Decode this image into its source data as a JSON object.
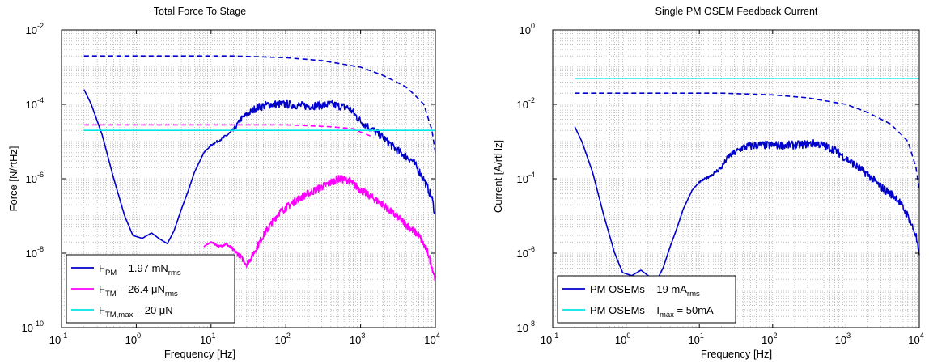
{
  "chart_data": [
    {
      "type": "line",
      "title": "Total Force To Stage",
      "xlabel": "Frequency [Hz]",
      "ylabel": "Force [N/rtHz]",
      "xscale": "log",
      "yscale": "log",
      "xlim": [
        0.1,
        10000
      ],
      "ylim": [
        1e-10,
        0.01
      ],
      "grid": true,
      "legend_position": "bottom-left",
      "x_ticks": [
        {
          "base": "10",
          "exp": "-1"
        },
        {
          "base": "10",
          "exp": "0"
        },
        {
          "base": "10",
          "exp": "1"
        },
        {
          "base": "10",
          "exp": "2"
        },
        {
          "base": "10",
          "exp": "3"
        },
        {
          "base": "10",
          "exp": "4"
        }
      ],
      "y_ticks": [
        {
          "base": "10",
          "exp": "-10"
        },
        {
          "base": "10",
          "exp": "-8"
        },
        {
          "base": "10",
          "exp": "-6"
        },
        {
          "base": "10",
          "exp": "-4"
        },
        {
          "base": "10",
          "exp": "-2"
        }
      ],
      "legend": [
        {
          "main": "F",
          "sub": "PM",
          "mid": " – 1.97 mN",
          "sub2": "rms",
          "color": "#0000cc"
        },
        {
          "main": "F",
          "sub": "TM",
          "mid": " – 26.4 μN",
          "sub2": "rms",
          "color": "#ff00ff"
        },
        {
          "main": "F",
          "sub": "TM,max",
          "mid": " – 20 μN",
          "sub2": "",
          "color": "#00e5e5"
        }
      ],
      "series": [
        {
          "color": "#0000cc",
          "dash": false,
          "noise": 0.22,
          "points": [
            [
              0.2,
              0.00025
            ],
            [
              0.25,
              0.0001
            ],
            [
              0.35,
              1.5e-05
            ],
            [
              0.5,
              1e-06
            ],
            [
              0.7,
              1e-07
            ],
            [
              0.9,
              3e-08
            ],
            [
              1.2,
              2.5e-08
            ],
            [
              1.6,
              3.5e-08
            ],
            [
              2.0,
              2.5e-08
            ],
            [
              2.6,
              1.8e-08
            ],
            [
              3.2,
              4e-08
            ],
            [
              4,
              1.5e-07
            ],
            [
              5,
              5e-07
            ],
            [
              6,
              1.5e-06
            ],
            [
              8,
              5e-06
            ],
            [
              10,
              8e-06
            ],
            [
              15,
              1.3e-05
            ],
            [
              20,
              2e-05
            ],
            [
              25,
              4e-05
            ],
            [
              40,
              8e-05
            ],
            [
              60,
              0.0001
            ],
            [
              100,
              0.0001
            ],
            [
              200,
              9e-05
            ],
            [
              400,
              0.0001
            ],
            [
              700,
              8e-05
            ],
            [
              1000,
              3.5e-05
            ],
            [
              2000,
              1.3e-05
            ],
            [
              3000,
              6e-06
            ],
            [
              5000,
              3e-06
            ],
            [
              7000,
              1e-06
            ],
            [
              9000,
              3e-07
            ],
            [
              10000,
              1e-07
            ]
          ]
        },
        {
          "color": "#0000cc",
          "dash": true,
          "noise": 0,
          "points": [
            [
              0.2,
              0.002
            ],
            [
              20,
              0.002
            ],
            [
              100,
              0.0018
            ],
            [
              300,
              0.0015
            ],
            [
              1000,
              0.001
            ],
            [
              2000,
              0.0006
            ],
            [
              4000,
              0.0003
            ],
            [
              5000,
              0.0002
            ],
            [
              7000,
              0.0001
            ],
            [
              9000,
              2e-05
            ],
            [
              10000,
              5e-06
            ]
          ]
        },
        {
          "color": "#ff00ff",
          "dash": true,
          "noise": 0,
          "points": [
            [
              0.2,
              2.8e-05
            ],
            [
              100,
              2.8e-05
            ],
            [
              400,
              2.5e-05
            ],
            [
              800,
              2.2e-05
            ],
            [
              1000,
              1.8e-05
            ],
            [
              1500,
              1.3e-05
            ]
          ]
        },
        {
          "color": "#00e5e5",
          "dash": false,
          "noise": 0,
          "points": [
            [
              0.2,
              2e-05
            ],
            [
              10000,
              2e-05
            ]
          ]
        },
        {
          "color": "#ff00ff",
          "dash": false,
          "noise": 0.2,
          "points": [
            [
              8,
              1.5e-08
            ],
            [
              10,
              2e-08
            ],
            [
              13,
              1.5e-08
            ],
            [
              16,
              1.8e-08
            ],
            [
              20,
              1.2e-08
            ],
            [
              25,
              8e-09
            ],
            [
              30,
              5e-09
            ],
            [
              35,
              8e-09
            ],
            [
              50,
              3e-08
            ],
            [
              80,
              1.2e-07
            ],
            [
              150,
              3e-07
            ],
            [
              300,
              6e-07
            ],
            [
              500,
              1e-06
            ],
            [
              700,
              9e-07
            ],
            [
              1000,
              5e-07
            ],
            [
              2000,
              2e-07
            ],
            [
              4000,
              6e-08
            ],
            [
              6000,
              3e-08
            ],
            [
              8000,
              1e-08
            ],
            [
              10000,
              2e-09
            ]
          ]
        }
      ]
    },
    {
      "type": "line",
      "title": "Single PM OSEM Feedback Current",
      "xlabel": "Frequency [Hz]",
      "ylabel": "Current [A/rtHz]",
      "xscale": "log",
      "yscale": "log",
      "xlim": [
        0.1,
        10000
      ],
      "ylim": [
        1e-08,
        1
      ],
      "grid": true,
      "legend_position": "bottom-left",
      "x_ticks": [
        {
          "base": "10",
          "exp": "-1"
        },
        {
          "base": "10",
          "exp": "0"
        },
        {
          "base": "10",
          "exp": "1"
        },
        {
          "base": "10",
          "exp": "2"
        },
        {
          "base": "10",
          "exp": "3"
        },
        {
          "base": "10",
          "exp": "4"
        }
      ],
      "y_ticks": [
        {
          "base": "10",
          "exp": "-8"
        },
        {
          "base": "10",
          "exp": "-6"
        },
        {
          "base": "10",
          "exp": "-4"
        },
        {
          "base": "10",
          "exp": "-2"
        },
        {
          "base": "10",
          "exp": "0"
        }
      ],
      "legend": [
        {
          "main": "PM OSEMs – 19 mA",
          "sub": "rms",
          "mid": "",
          "sub2": "",
          "color": "#0000cc"
        },
        {
          "main": "PM OSEMs – I",
          "sub": "max",
          "mid": " = 50mA",
          "sub2": "",
          "color": "#00e5e5"
        }
      ],
      "series": [
        {
          "color": "#0000cc",
          "dash": false,
          "noise": 0.22,
          "points": [
            [
              0.2,
              0.0025
            ],
            [
              0.25,
              0.001
            ],
            [
              0.35,
              0.00015
            ],
            [
              0.5,
              1e-05
            ],
            [
              0.7,
              1e-06
            ],
            [
              0.9,
              3e-07
            ],
            [
              1.2,
              2.5e-07
            ],
            [
              1.6,
              3.5e-07
            ],
            [
              2.0,
              2.5e-07
            ],
            [
              2.6,
              1.8e-07
            ],
            [
              3.2,
              4e-07
            ],
            [
              4,
              1.5e-06
            ],
            [
              5,
              5e-06
            ],
            [
              6,
              1.5e-05
            ],
            [
              8,
              5e-05
            ],
            [
              10,
              8e-05
            ],
            [
              15,
              0.00013
            ],
            [
              20,
              0.0002
            ],
            [
              25,
              0.0004
            ],
            [
              40,
              0.0007
            ],
            [
              60,
              0.0008
            ],
            [
              100,
              0.0008
            ],
            [
              200,
              0.0008
            ],
            [
              400,
              0.0009
            ],
            [
              700,
              0.0006
            ],
            [
              1000,
              0.00035
            ],
            [
              2000,
              0.00013
            ],
            [
              3000,
              6e-05
            ],
            [
              5000,
              3e-05
            ],
            [
              7000,
              1e-05
            ],
            [
              9000,
              3e-06
            ],
            [
              10000,
              8e-07
            ]
          ]
        },
        {
          "color": "#0000cc",
          "dash": true,
          "noise": 0,
          "points": [
            [
              0.2,
              0.02
            ],
            [
              20,
              0.02
            ],
            [
              100,
              0.018
            ],
            [
              300,
              0.015
            ],
            [
              1000,
              0.01
            ],
            [
              2000,
              0.006
            ],
            [
              4000,
              0.003
            ],
            [
              5000,
              0.002
            ],
            [
              7000,
              0.001
            ],
            [
              9000,
              0.0002
            ],
            [
              10000,
              5e-05
            ]
          ]
        },
        {
          "color": "#00e5e5",
          "dash": false,
          "noise": 0,
          "points": [
            [
              0.2,
              0.05
            ],
            [
              10000,
              0.05
            ]
          ]
        }
      ]
    }
  ]
}
